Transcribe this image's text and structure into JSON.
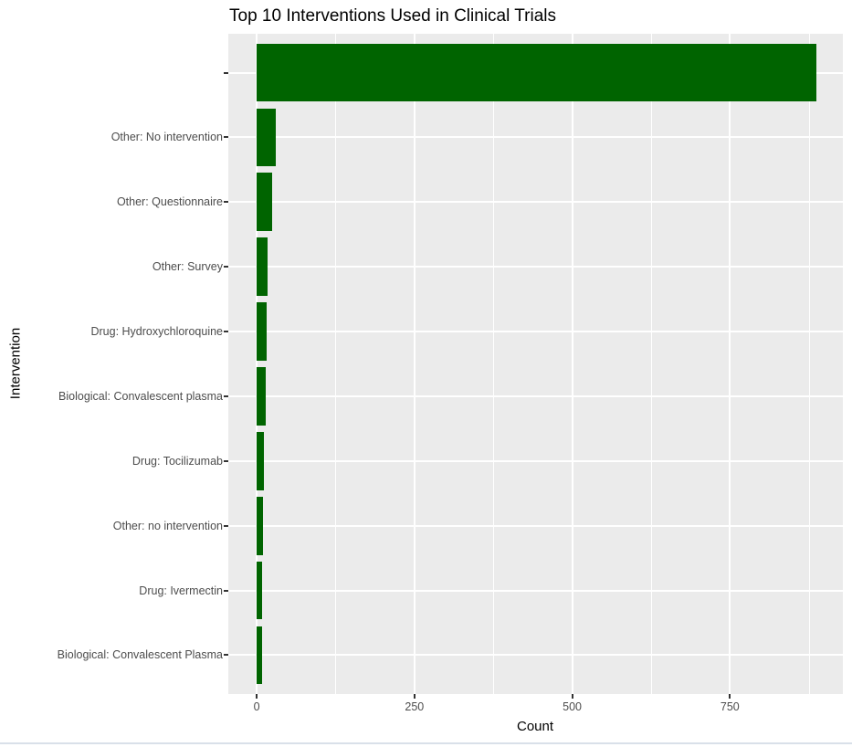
{
  "chart_data": {
    "type": "bar",
    "orientation": "horizontal",
    "title": "Top 10 Interventions Used in Clinical Trials",
    "xlabel": "Count",
    "ylabel": "Intervention",
    "categories": [
      "",
      "Other: No intervention",
      "Other: Questionnaire",
      "Other: Survey",
      "Drug: Hydroxychloroquine",
      "Biological: Convalescent plasma",
      "Drug: Tocilizumab",
      "Other: no intervention",
      "Drug: Ivermectin",
      "Biological: Convalescent Plasma"
    ],
    "values": [
      887,
      31,
      24,
      17,
      16,
      15,
      11,
      10,
      9,
      8
    ],
    "x_ticks": [
      0,
      250,
      500,
      750
    ],
    "x_minor_gridlines": [
      125,
      375,
      625,
      875
    ],
    "xlim": [
      -45,
      929
    ],
    "grid": true,
    "legend": false,
    "bar_color": "#006400",
    "panel_background": "#EBEBEB",
    "gridline_color": "#FFFFFF",
    "axis_text_color": "#4D4D4D",
    "tick_mark_color": "#333333"
  }
}
